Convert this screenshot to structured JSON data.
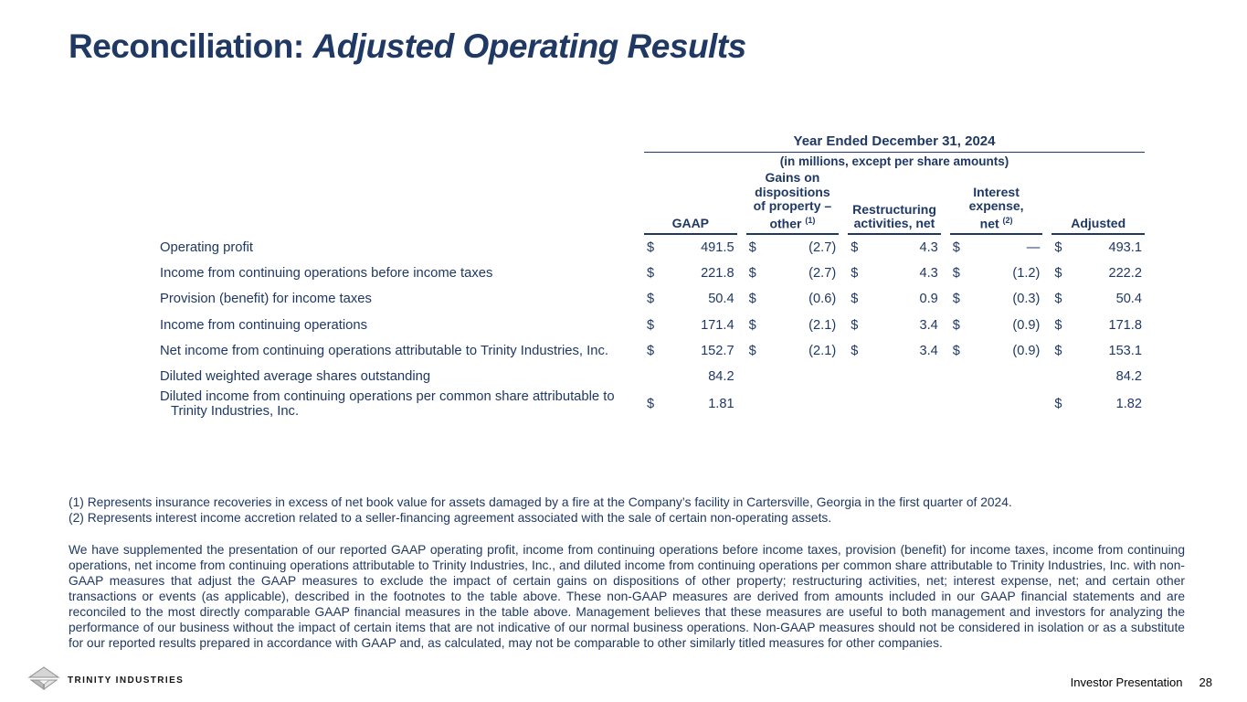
{
  "slide": {
    "title": {
      "prefix": "Reconciliation: ",
      "emphasis": "Adjusted Operating Results"
    },
    "accent_color": "#1f3864",
    "footer": {
      "brand": "TRINITY INDUSTRIES",
      "right_label": "Investor Presentation",
      "page_number": "28"
    }
  },
  "table": {
    "period_header": "Year Ended December 31, 2024",
    "units_note": "(in millions, except per share amounts)",
    "columns": [
      {
        "lines": [
          "GAAP"
        ],
        "sup": ""
      },
      {
        "lines": [
          "Gains on",
          "dispositions",
          "of property –",
          "other"
        ],
        "sup": "(1)"
      },
      {
        "lines": [
          "Restructuring",
          "activities, net"
        ],
        "sup": ""
      },
      {
        "lines": [
          "Interest",
          "expense,",
          "net"
        ],
        "sup": "(2)"
      },
      {
        "lines": [
          "Adjusted"
        ],
        "sup": ""
      }
    ],
    "rows": [
      {
        "label": "Operating profit",
        "cells": [
          {
            "d": "$",
            "v": "491.5"
          },
          {
            "d": "$",
            "v": "(2.7)"
          },
          {
            "d": "$",
            "v": "4.3"
          },
          {
            "d": "$",
            "v": "—"
          },
          {
            "d": "$",
            "v": "493.1"
          }
        ]
      },
      {
        "label": "Income from continuing operations before income taxes",
        "cells": [
          {
            "d": "$",
            "v": "221.8"
          },
          {
            "d": "$",
            "v": "(2.7)"
          },
          {
            "d": "$",
            "v": "4.3"
          },
          {
            "d": "$",
            "v": "(1.2)"
          },
          {
            "d": "$",
            "v": "222.2"
          }
        ]
      },
      {
        "label": "Provision (benefit) for income taxes",
        "cells": [
          {
            "d": "$",
            "v": "50.4"
          },
          {
            "d": "$",
            "v": "(0.6)"
          },
          {
            "d": "$",
            "v": "0.9"
          },
          {
            "d": "$",
            "v": "(0.3)"
          },
          {
            "d": "$",
            "v": "50.4"
          }
        ]
      },
      {
        "label": "Income from continuing operations",
        "cells": [
          {
            "d": "$",
            "v": "171.4"
          },
          {
            "d": "$",
            "v": "(2.1)"
          },
          {
            "d": "$",
            "v": "3.4"
          },
          {
            "d": "$",
            "v": "(0.9)"
          },
          {
            "d": "$",
            "v": "171.8"
          }
        ]
      },
      {
        "label": "Net income from continuing operations attributable to Trinity Industries, Inc.",
        "cells": [
          {
            "d": "$",
            "v": "152.7"
          },
          {
            "d": "$",
            "v": "(2.1)"
          },
          {
            "d": "$",
            "v": "3.4"
          },
          {
            "d": "$",
            "v": "(0.9)"
          },
          {
            "d": "$",
            "v": "153.1"
          }
        ]
      },
      {
        "label": "Diluted weighted average shares outstanding",
        "cells": [
          {
            "d": "",
            "v": "84.2"
          },
          {
            "d": "",
            "v": ""
          },
          {
            "d": "",
            "v": ""
          },
          {
            "d": "",
            "v": ""
          },
          {
            "d": "",
            "v": "84.2"
          }
        ]
      },
      {
        "label": "Diluted income from continuing operations per common share attributable to Trinity Industries, Inc.",
        "cells": [
          {
            "d": "$",
            "v": "1.81"
          },
          {
            "d": "",
            "v": ""
          },
          {
            "d": "",
            "v": ""
          },
          {
            "d": "",
            "v": ""
          },
          {
            "d": "$",
            "v": "1.82"
          }
        ]
      }
    ]
  },
  "footnotes": [
    "(1) Represents insurance recoveries in excess of net book value for assets damaged by a fire at the Company’s facility in Cartersville, Georgia in the first quarter of 2024.",
    "(2) Represents interest income accretion related to a seller-financing agreement associated with the sale of certain non-operating assets."
  ],
  "body_paragraph": "We have supplemented the presentation of our reported GAAP operating profit, income from continuing operations before income taxes, provision (benefit) for income taxes, income from continuing operations, net income from continuing operations attributable to Trinity Industries, Inc., and diluted income from continuing operations per common share attributable to Trinity Industries, Inc. with non-GAAP measures that adjust the GAAP measures to exclude the impact of certain gains on dispositions of other property; restructuring activities, net; interest expense, net; and certain other transactions or events (as applicable), described in the footnotes to the table above. These non-GAAP measures are derived from amounts included in our GAAP financial statements and are reconciled to the most directly comparable GAAP financial measures in the table above. Management believes that these measures are useful to both management and investors for analyzing the performance of our business without the impact of certain items that are not indicative of our normal business operations. Non-GAAP measures should not be considered in isolation or as a substitute for our reported results prepared in accordance with GAAP and, as calculated, may not be comparable to other similarly titled measures for other companies."
}
